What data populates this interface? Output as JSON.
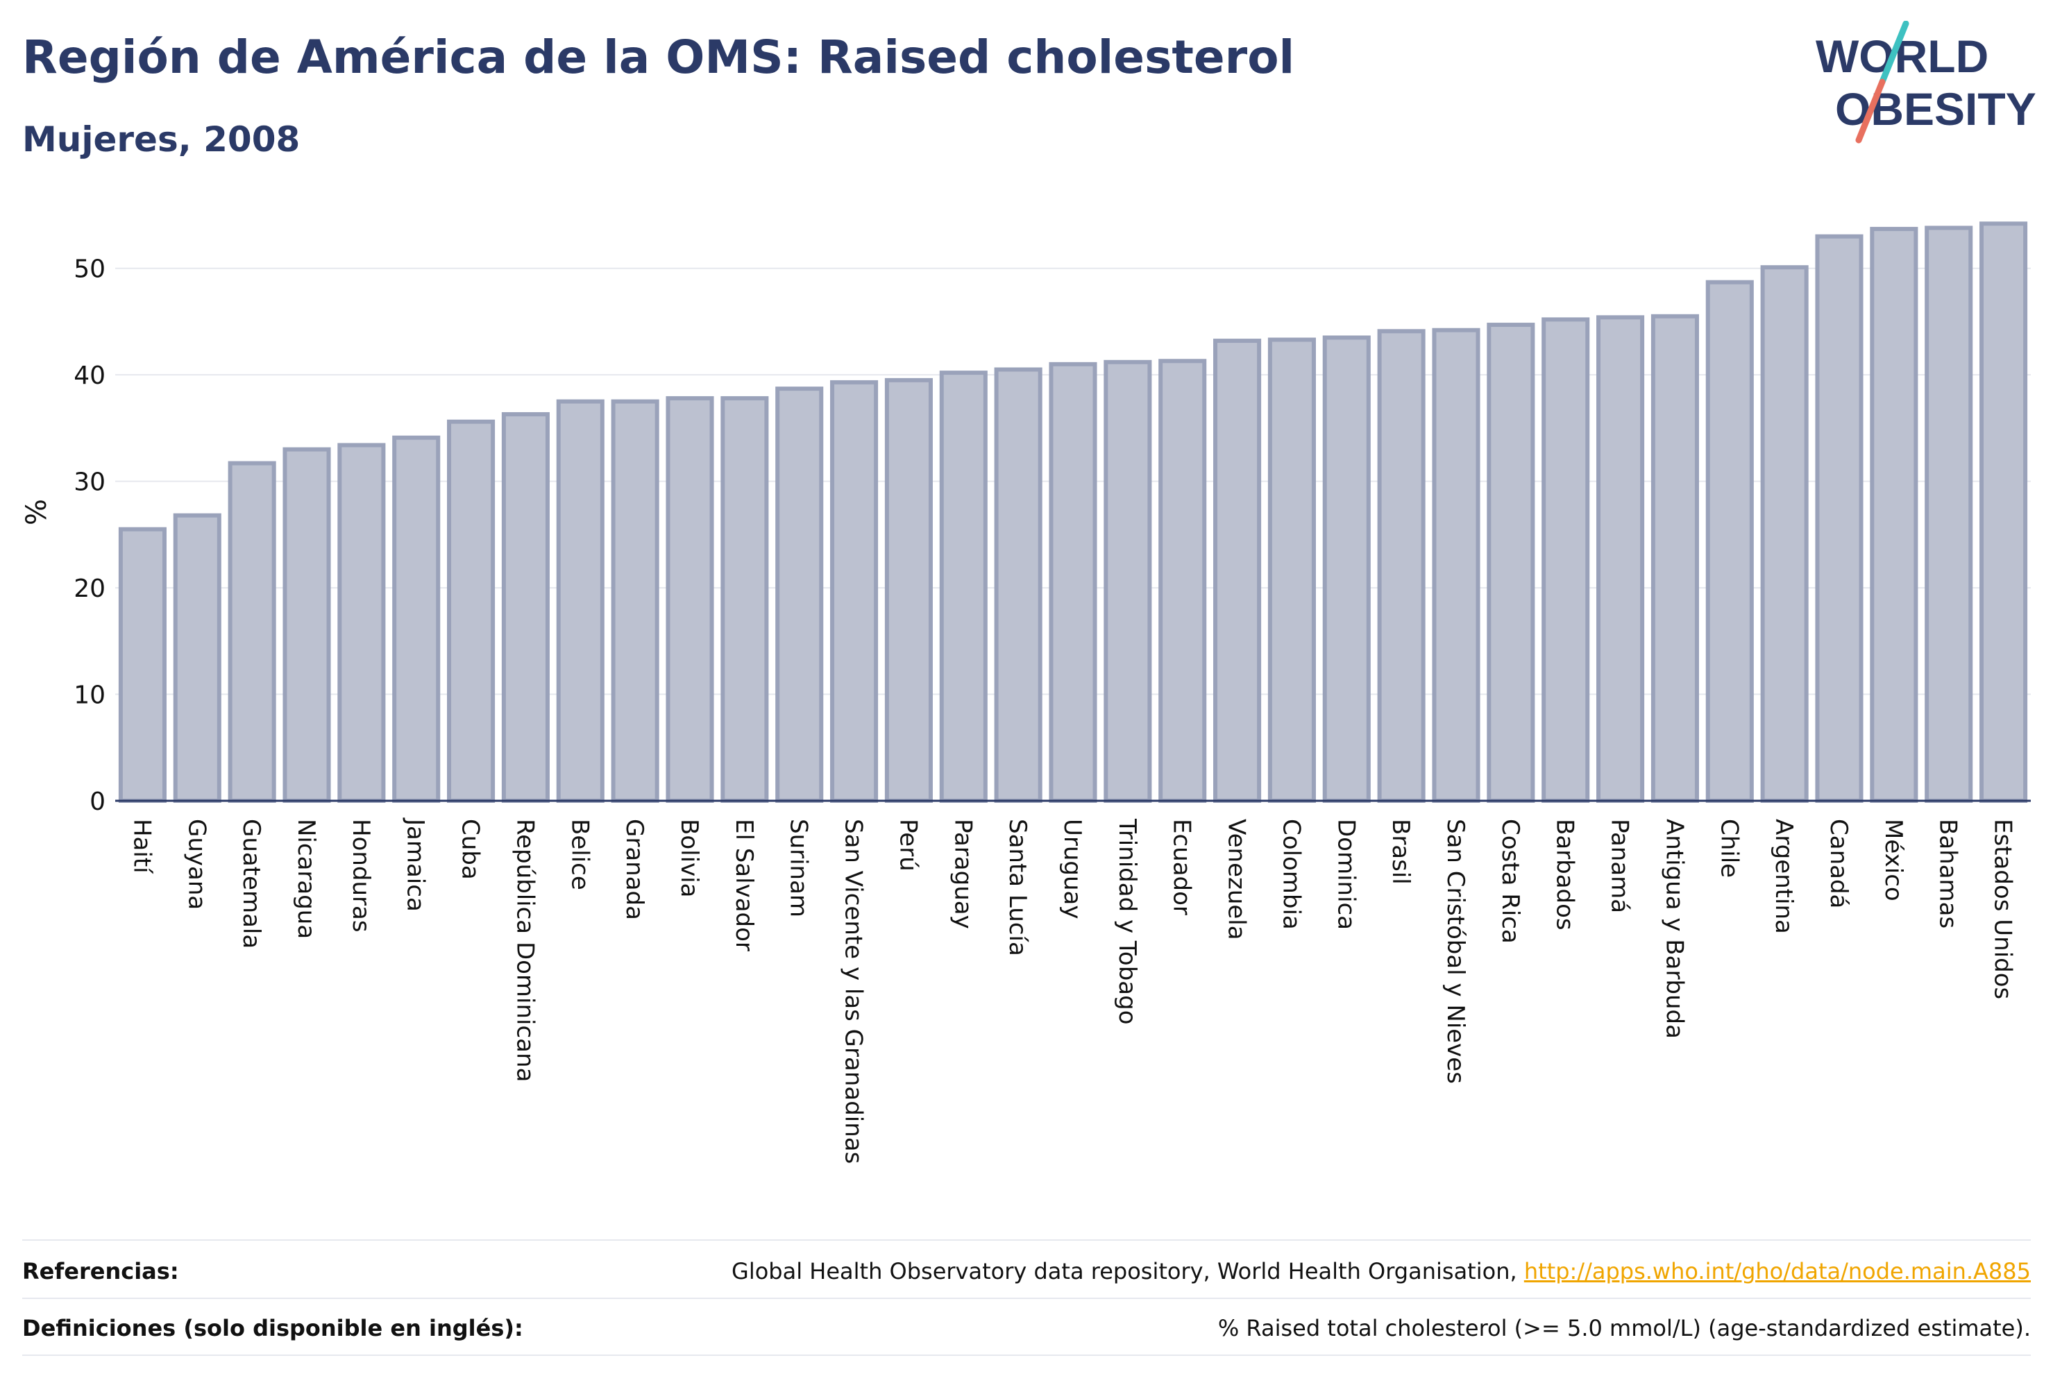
{
  "header": {
    "title": "Región de América de la OMS: Raised cholesterol",
    "subtitle": "Mujeres, 2008"
  },
  "logo": {
    "line1": "WORLD",
    "line2": "OBESITY",
    "text_color": "#2b3a67",
    "slash_colors": [
      "#3ec1c1",
      "#e8705f"
    ]
  },
  "chart_data": {
    "type": "bar",
    "ylabel": "%",
    "xlabel": "",
    "ylim": [
      0,
      55
    ],
    "yticks": [
      0,
      10,
      20,
      30,
      40,
      50
    ],
    "grid": true,
    "bar_fill": "#bcc1d0",
    "bar_stroke": "#9aa2ba",
    "categories": [
      "Haití",
      "Guyana",
      "Guatemala",
      "Nicaragua",
      "Honduras",
      "Jamaica",
      "Cuba",
      "República Dominicana",
      "Belice",
      "Granada",
      "Bolivia",
      "El Salvador",
      "Surinam",
      "San Vicente y las Granadinas",
      "Perú",
      "Paraguay",
      "Santa Lucía",
      "Uruguay",
      "Trinidad y Tobago",
      "Ecuador",
      "Venezuela",
      "Colombia",
      "Dominica",
      "Brasil",
      "San Cristóbal y Nieves",
      "Costa Rica",
      "Barbados",
      "Panamá",
      "Antigua y Barbuda",
      "Chile",
      "Argentina",
      "Canadá",
      "México",
      "Bahamas",
      "Estados Unidos"
    ],
    "values": [
      25.5,
      26.8,
      31.7,
      33.0,
      33.4,
      34.1,
      35.6,
      36.3,
      37.5,
      37.5,
      37.8,
      37.8,
      38.7,
      39.3,
      39.5,
      40.2,
      40.5,
      41.0,
      41.2,
      41.3,
      43.2,
      43.3,
      43.5,
      44.1,
      44.2,
      44.7,
      45.2,
      45.4,
      45.5,
      48.7,
      50.1,
      53.0,
      53.7,
      53.8,
      54.2
    ]
  },
  "footer": {
    "references_label": "Referencias:",
    "references_text": "Global Health Observatory data repository, World Health Organisation, ",
    "references_link": "http://apps.who.int/gho/data/node.main.A885",
    "definitions_label": "Definiciones (solo disponible en inglés):",
    "definitions_text": "% Raised total cholesterol (>= 5.0 mmol/L) (age-standardized estimate)."
  }
}
